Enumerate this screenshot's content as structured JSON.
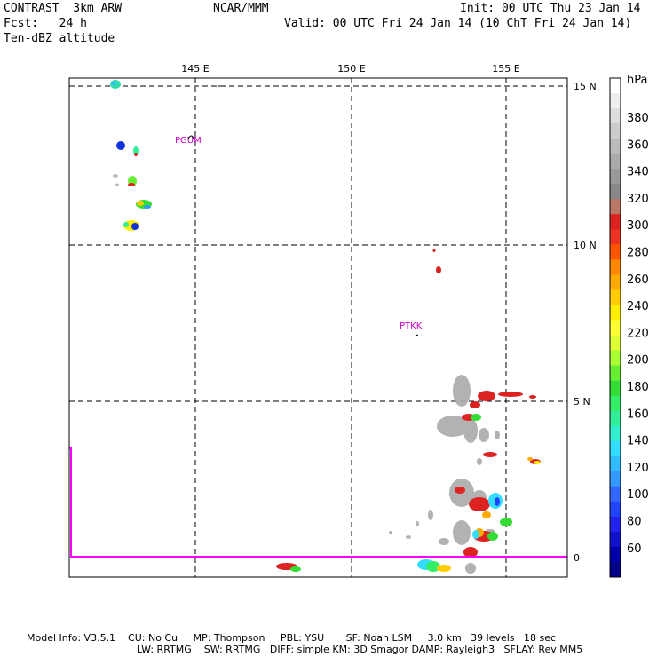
{
  "header": {
    "model": "CONTRAST  3km ARW",
    "center": "NCAR/MMM",
    "init": "Init: 00 UTC Thu 23 Jan 14",
    "fcst": "Fcst:   24 h",
    "valid": "Valid: 00 UTC Fri 24 Jan 14 (10 ChT Fri 24 Jan 14)",
    "field": "Ten-dBZ altitude"
  },
  "map": {
    "lon_labels": [
      "145 E",
      "150 E",
      "155 E"
    ],
    "lat_labels": [
      "15 N",
      "10 N",
      "5 N",
      "0"
    ],
    "stations": [
      {
        "id": "PGUM",
        "lon": 144.8,
        "lat": 13.48
      },
      {
        "id": "PTKK",
        "lon": 151.84,
        "lat": 7.46
      }
    ],
    "label_color": "#cc00cc",
    "boundary_color": "#ff00ff"
  },
  "colorbar": {
    "unit": "hPa",
    "labels": [
      "380",
      "360",
      "340",
      "320",
      "300",
      "280",
      "260",
      "240",
      "220",
      "200",
      "180",
      "160",
      "140",
      "120",
      "100",
      "80",
      "60"
    ],
    "colors": [
      "#ffffff",
      "#eeeeee",
      "#dddddd",
      "#cccccc",
      "#bbbbbb",
      "#aaaaaa",
      "#999999",
      "#888888",
      "#bb7766",
      "#dd2222",
      "#ee3322",
      "#ff5500",
      "#ff8800",
      "#ffaa00",
      "#ffcc00",
      "#ffee00",
      "#ffff33",
      "#ddff33",
      "#aaff33",
      "#66ee33",
      "#33dd33",
      "#33ee66",
      "#33ee99",
      "#33eecc",
      "#33ddff",
      "#33bbff",
      "#3399ff",
      "#3366ff",
      "#2244ff",
      "#2222ee",
      "#1111cc",
      "#0000aa",
      "#000088"
    ]
  },
  "footer": {
    "line1": "Model Info: V3.5.1    CU: No Cu     MP: Thompson     PBL: YSU       SF: Noah LSM     3.0 km   39 levels   18 sec",
    "line2": "LW: RRTMG    SW: RRTMG   DIFF: simple KM: 3D Smagor DAMP: Rayleigh3   SFLAY: Rev MM5"
  }
}
